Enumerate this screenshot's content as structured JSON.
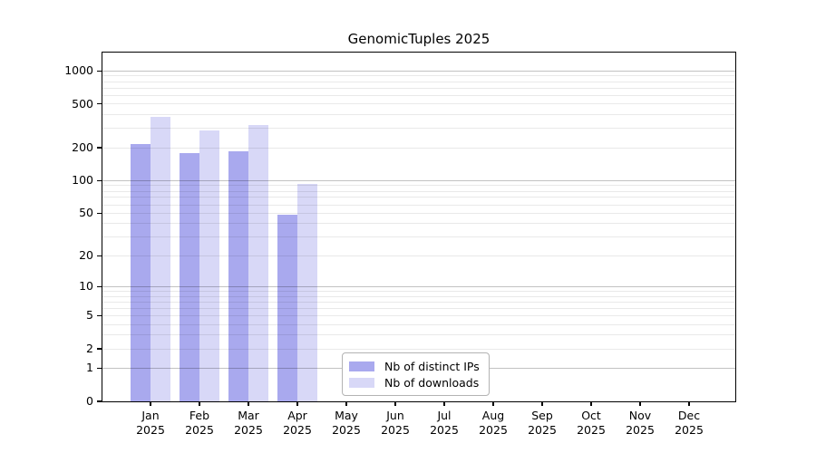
{
  "chart_data": {
    "type": "bar",
    "title": "GenomicTuples 2025",
    "categories": [
      "Jan",
      "Feb",
      "Mar",
      "Apr",
      "May",
      "Jun",
      "Jul",
      "Aug",
      "Sep",
      "Oct",
      "Nov",
      "Dec"
    ],
    "year": "2025",
    "series": [
      {
        "name": "Nb of distinct IPs",
        "color": "#a9a9ee",
        "values": [
          215,
          178,
          185,
          49,
          null,
          null,
          null,
          null,
          null,
          null,
          null,
          null
        ]
      },
      {
        "name": "Nb of downloads",
        "color": "#d8d8f7",
        "values": [
          380,
          290,
          325,
          94,
          null,
          null,
          null,
          null,
          null,
          null,
          null,
          null
        ]
      }
    ],
    "y_axis": {
      "scale": "log10(1+v)",
      "ticks": [
        0,
        1,
        2,
        5,
        10,
        20,
        50,
        100,
        200,
        500,
        1000
      ],
      "range": [
        0,
        1470
      ]
    },
    "x_axis": {
      "tick_labels_line2": "2025"
    },
    "grid": {
      "major_lines": [
        1,
        10,
        100,
        1000
      ],
      "minor_lines": [
        2,
        3,
        4,
        5,
        6,
        7,
        8,
        9,
        20,
        30,
        40,
        50,
        60,
        70,
        80,
        90,
        200,
        300,
        400,
        500,
        600,
        700,
        800,
        900
      ]
    },
    "legend": {
      "position": "inside-bottom-center"
    },
    "colors": {
      "background": "#ffffff",
      "axis": "#000000",
      "grid_major": "rgba(0,0,0,0.24)",
      "grid_minor": "rgba(0,0,0,0.085)"
    }
  }
}
